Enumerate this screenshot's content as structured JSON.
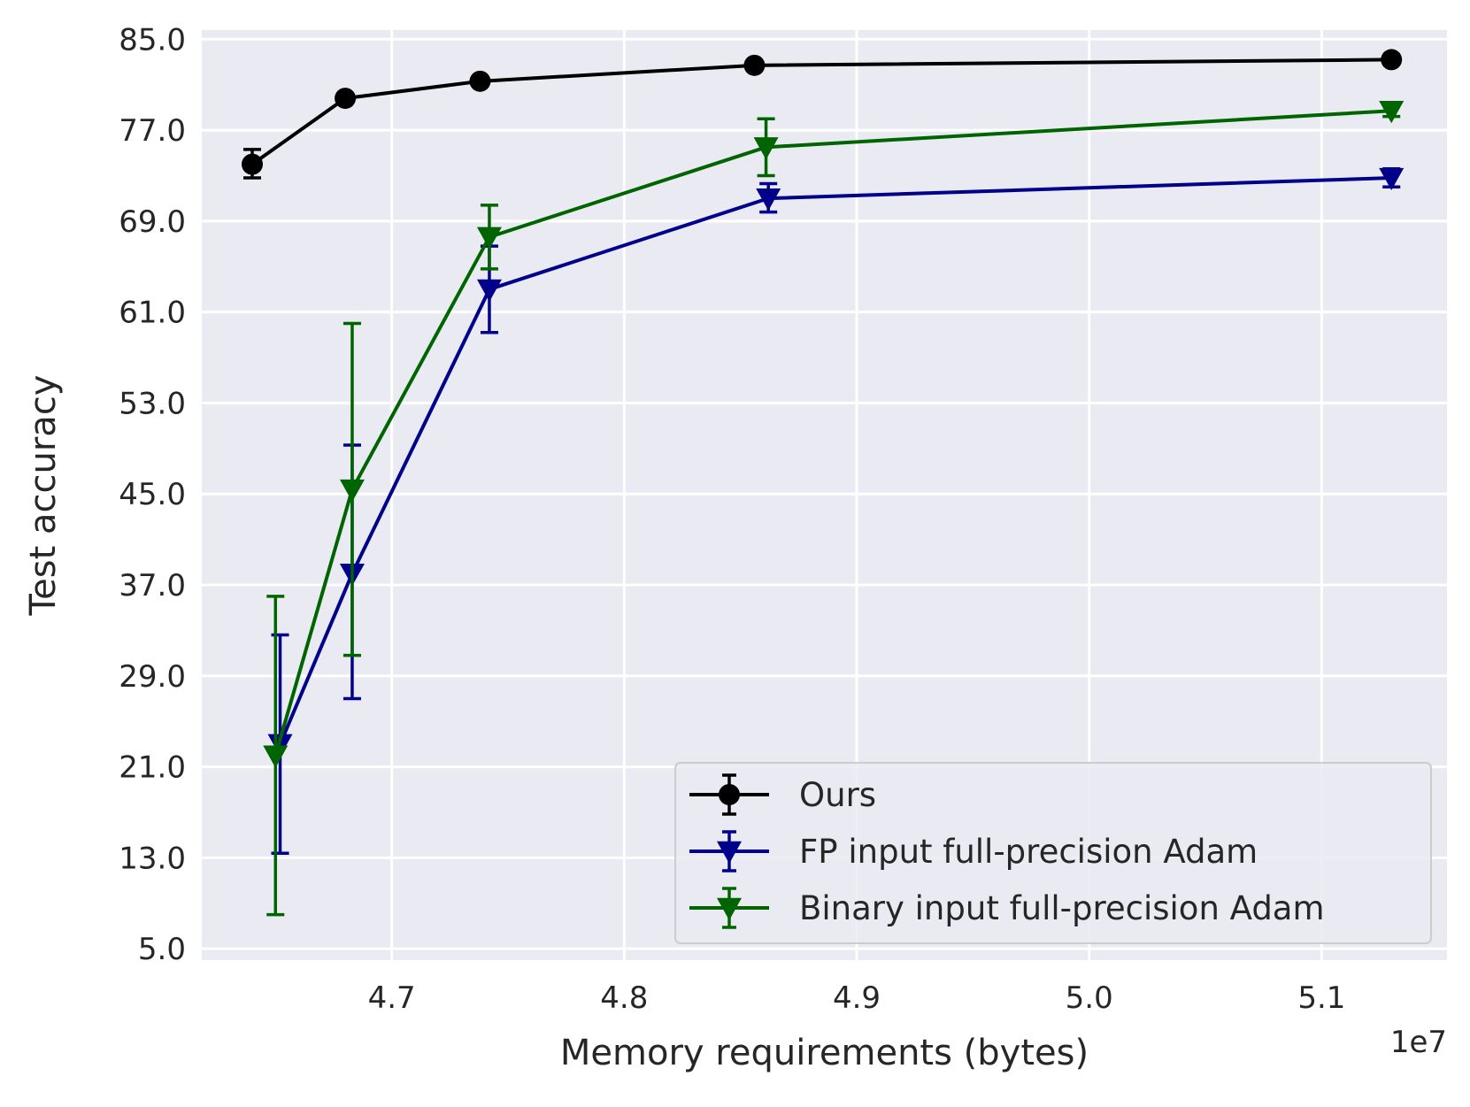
{
  "chart_data": {
    "type": "line",
    "xlabel": "Memory requirements (bytes)",
    "ylabel": "Test accuracy",
    "x_offset_label": "1e7",
    "xlim": [
      46183000,
      51539000
    ],
    "ylim": [
      4.0,
      85.8
    ],
    "xticks": [
      47000000,
      48000000,
      49000000,
      50000000,
      51000000
    ],
    "xtick_labels": [
      "4.7",
      "4.8",
      "4.9",
      "5.0",
      "5.1"
    ],
    "yticks": [
      5,
      13,
      21,
      29,
      37,
      45,
      53,
      61,
      69,
      77,
      85
    ],
    "ytick_labels": [
      "5.0",
      "13.0",
      "21.0",
      "29.0",
      "37.0",
      "45.0",
      "53.0",
      "61.0",
      "69.0",
      "77.0",
      "85.0"
    ],
    "grid": true,
    "legend_position": "lower right",
    "series": [
      {
        "name": "Ours",
        "color": "#000000",
        "marker": "circle",
        "x": [
          46400000,
          46800000,
          47380000,
          48560000,
          51300000
        ],
        "y": [
          74.0,
          79.8,
          81.3,
          82.7,
          83.2
        ],
        "err_low": [
          72.8,
          79.8,
          81.3,
          82.7,
          83.2
        ],
        "err_high": [
          75.3,
          79.8,
          81.3,
          82.7,
          83.2
        ]
      },
      {
        "name": "FP input full-precision Adam",
        "color": "#00008b",
        "marker": "triangle-down",
        "x": [
          46520000,
          46830000,
          47420000,
          48620000,
          51300000
        ],
        "y": [
          23.0,
          38.0,
          63.0,
          71.0,
          72.8
        ],
        "err_low": [
          13.4,
          27.0,
          59.2,
          69.8,
          72.0
        ],
        "err_high": [
          32.6,
          49.3,
          66.8,
          72.3,
          73.6
        ]
      },
      {
        "name": "Binary input full-precision Adam",
        "color": "#006400",
        "marker": "triangle-down",
        "x": [
          46500000,
          46830000,
          47420000,
          48610000,
          51300000
        ],
        "y": [
          22.0,
          45.4,
          67.6,
          75.5,
          78.7
        ],
        "err_low": [
          8.0,
          30.8,
          64.8,
          73.0,
          78.2
        ],
        "err_high": [
          36.0,
          60.0,
          70.4,
          78.0,
          79.2
        ]
      }
    ]
  }
}
